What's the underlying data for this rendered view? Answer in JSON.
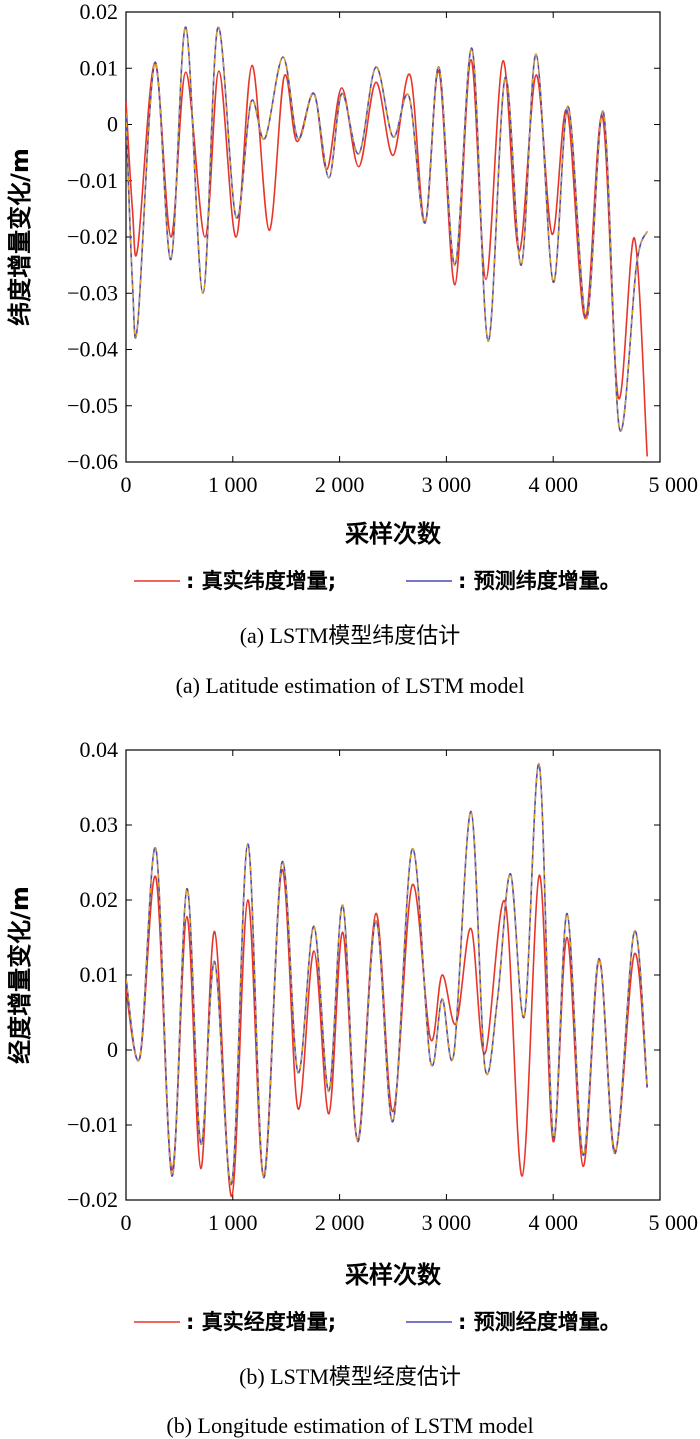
{
  "chart_data": [
    {
      "type": "line",
      "ylabel": "纬度增量变化/m",
      "xlabel": "采样次数",
      "xlim": [
        0,
        5000
      ],
      "ylim": [
        -0.06,
        0.02
      ],
      "xticks": [
        "0",
        "1 000",
        "2 000",
        "3 000",
        "4 000",
        "5 000"
      ],
      "yticks": [
        "-0.06",
        "-0.05",
        "-0.04",
        "-0.03",
        "-0.02",
        "-0.01",
        "0",
        "0.01",
        "0.02"
      ],
      "legend_placement": "bottom",
      "legend": [
        {
          "label": ": 真实纬度增量;",
          "color": "#e8352a"
        },
        {
          "label": ": 预测纬度增量。",
          "color": "#4a4ab5"
        }
      ],
      "caption_cn": "(a) LSTM模型纬度估计",
      "caption_en": "(a) Latitude estimation of LSTM model",
      "series": [
        {
          "color": "#e8352a",
          "x": [
            0,
            60,
            110,
            270,
            420,
            560,
            740,
            870,
            1030,
            1180,
            1340,
            1480,
            1600,
            1760,
            1880,
            2020,
            2180,
            2340,
            2500,
            2660,
            2800,
            2930,
            3080,
            3230,
            3370,
            3530,
            3680,
            3840,
            3990,
            4130,
            4300,
            4460,
            4610,
            4760,
            4880
          ],
          "y": [
            0.004,
            -0.015,
            -0.022,
            0.011,
            -0.02,
            0.0093,
            -0.02,
            0.0095,
            -0.02,
            0.0105,
            -0.0188,
            0.0085,
            -0.003,
            0.0055,
            -0.008,
            0.0065,
            -0.0075,
            0.0075,
            -0.0055,
            0.0088,
            -0.0175,
            0.0095,
            -0.0285,
            0.0115,
            -0.0275,
            0.0113,
            -0.0225,
            0.0088,
            -0.0195,
            0.0025,
            -0.0345,
            0.0015,
            -0.0485,
            -0.0202,
            -0.059
          ]
        },
        {
          "color": "#4a4ab5",
          "dashed_overlay_color": "#e0a020",
          "x": [
            0,
            60,
            110,
            270,
            420,
            560,
            720,
            860,
            1030,
            1170,
            1300,
            1470,
            1610,
            1760,
            1900,
            2020,
            2180,
            2340,
            2500,
            2650,
            2800,
            2930,
            3080,
            3240,
            3390,
            3550,
            3700,
            3840,
            4000,
            4140,
            4310,
            4470,
            4620,
            4780,
            4880
          ],
          "y": [
            0.002,
            -0.028,
            -0.0355,
            0.011,
            -0.024,
            0.0173,
            -0.03,
            0.0172,
            -0.0165,
            0.004,
            -0.0025,
            0.012,
            -0.0025,
            0.0055,
            -0.0095,
            0.0055,
            -0.0052,
            0.0102,
            -0.0022,
            0.005,
            -0.0175,
            0.0102,
            -0.025,
            0.0135,
            -0.0385,
            0.0083,
            -0.025,
            0.0125,
            -0.028,
            0.0032,
            -0.0345,
            0.0022,
            -0.054,
            -0.025,
            -0.019
          ]
        }
      ]
    },
    {
      "type": "line",
      "ylabel": "经度增量变化/m",
      "xlabel": "采样次数",
      "xlim": [
        0,
        5000
      ],
      "ylim": [
        -0.02,
        0.04
      ],
      "xticks": [
        "0",
        "1 000",
        "2 000",
        "3 000",
        "4 000",
        "5 000"
      ],
      "yticks": [
        "-0.02",
        "-0.01",
        "0",
        "0.01",
        "0.02",
        "0.03",
        "0.04"
      ],
      "legend_placement": "bottom",
      "legend": [
        {
          "label": ": 真实经度增量;",
          "color": "#e8352a"
        },
        {
          "label": ": 预测经度增量。",
          "color": "#4a4ab5"
        }
      ],
      "caption_cn": "(b) LSTM模型经度估计",
      "caption_en": "(b) Longitude estimation of LSTM model",
      "series": [
        {
          "color": "#e8352a",
          "x": [
            0,
            130,
            280,
            430,
            570,
            700,
            830,
            990,
            1140,
            1290,
            1460,
            1610,
            1760,
            1900,
            2030,
            2170,
            2340,
            2500,
            2680,
            2850,
            2960,
            3090,
            3230,
            3360,
            3550,
            3710,
            3870,
            4000,
            4130,
            4280,
            4430,
            4580,
            4760,
            4880
          ],
          "y": [
            0.008,
            -0.001,
            0.023,
            -0.016,
            0.0178,
            -0.0158,
            0.0158,
            -0.0195,
            0.02,
            -0.0168,
            0.024,
            -0.0078,
            0.0132,
            -0.0085,
            0.0157,
            -0.012,
            0.0182,
            -0.0082,
            0.022,
            0.0015,
            0.01,
            0.0035,
            0.0162,
            -0.0005,
            0.0197,
            -0.0168,
            0.0233,
            -0.0122,
            0.015,
            -0.0155,
            0.012,
            -0.0135,
            0.0128,
            -0.005
          ]
        },
        {
          "color": "#4a4ab5",
          "dashed_overlay_color": "#e0a020",
          "x": [
            0,
            130,
            280,
            430,
            570,
            700,
            830,
            990,
            1140,
            1290,
            1460,
            1610,
            1760,
            1900,
            2030,
            2170,
            2340,
            2500,
            2680,
            2850,
            2960,
            3070,
            3230,
            3360,
            3480,
            3600,
            3730,
            3870,
            4000,
            4130,
            4280,
            4430,
            4580,
            4760,
            4880
          ],
          "y": [
            0.0095,
            -0.001,
            0.0268,
            -0.0168,
            0.0215,
            -0.0125,
            0.0118,
            -0.0178,
            0.0275,
            -0.017,
            0.025,
            -0.003,
            0.0165,
            -0.0055,
            0.0193,
            -0.0122,
            0.0172,
            -0.0095,
            0.0268,
            -0.0015,
            0.0068,
            -0.0005,
            0.0318,
            -0.0022,
            0.007,
            0.0235,
            0.0045,
            0.038,
            -0.0115,
            0.0182,
            -0.014,
            0.0122,
            -0.0138,
            0.0158,
            -0.005
          ]
        }
      ]
    }
  ]
}
